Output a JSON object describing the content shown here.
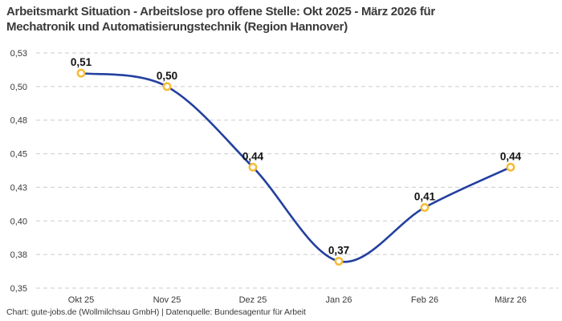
{
  "title_lines": [
    "Arbeitsmarkt Situation - Arbeitslose pro offene Stelle: Okt 2025 - März 2026 für",
    "Mechatronik und Automatisierungstechnik (Region Hannover)"
  ],
  "footer": "Chart: gute-jobs.de (Wollmilchsau GmbH) | Datenquelle: Bundesagentur für Arbeit",
  "chart_data": {
    "type": "line",
    "title": "Arbeitsmarkt Situation - Arbeitslose pro offene Stelle: Okt 2025 - März 2026 für Mechatronik und Automatisierungstechnik (Region Hannover)",
    "categories": [
      "Okt 25",
      "Nov 25",
      "Dez 25",
      "Jan 26",
      "Feb 26",
      "März 26"
    ],
    "values": [
      0.51,
      0.5,
      0.44,
      0.37,
      0.41,
      0.44
    ],
    "point_labels": [
      "0,51",
      "0,50",
      "0,44",
      "0,37",
      "0,41",
      "0,44"
    ],
    "y_axis": {
      "tick_values": [
        0.525,
        0.5,
        0.475,
        0.45,
        0.425,
        0.4,
        0.375,
        0.35
      ],
      "tick_labels": [
        "0,53",
        "0,50",
        "0,48",
        "0,45",
        "0,43",
        "0,40",
        "0,38",
        "0,35"
      ],
      "range": [
        0.35,
        0.525
      ]
    },
    "xlabel": "",
    "ylabel": "",
    "grid": "horizontal-dashed",
    "legend": "none",
    "curve": "smooth-spline",
    "colors": {
      "line": "#23409F",
      "marker_ring": "#F7BB33",
      "marker_fill": "#FFFFFF",
      "grid": "#CBCBCB",
      "title_text": "#3A3A3A",
      "axis_text": "#3A3A3A",
      "point_label_text": "#111111",
      "background": "#FFFFFF"
    },
    "source": "Chart: gute-jobs.de (Wollmilchsau GmbH) | Datenquelle: Bundesagentur für Arbeit"
  }
}
